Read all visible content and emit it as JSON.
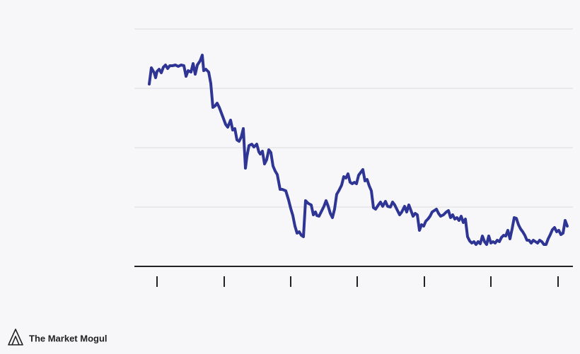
{
  "brand": "The Market Mogul",
  "chart_data": {
    "type": "line",
    "x": [
      -11,
      -8,
      -4,
      -2,
      0,
      3,
      6,
      9,
      12,
      15,
      18,
      22,
      26,
      30,
      34,
      38,
      41,
      44,
      48,
      51,
      54,
      57,
      61,
      64,
      66,
      69,
      73,
      76,
      79,
      82,
      85,
      88,
      91,
      94,
      97,
      100,
      104,
      107,
      110,
      113,
      116,
      119,
      122,
      125,
      127,
      130,
      134,
      137,
      141,
      144,
      146,
      149,
      152,
      155,
      158,
      161,
      164,
      167,
      170,
      174,
      177,
      182,
      186,
      189,
      192,
      195,
      198,
      201,
      204,
      207,
      210,
      214,
      218,
      221,
      224,
      226,
      229,
      233,
      236,
      239,
      242,
      245,
      248,
      251,
      254,
      257,
      261,
      264,
      267,
      270,
      273,
      276,
      279,
      282,
      285,
      288,
      291,
      294,
      297,
      300,
      303,
      306,
      309,
      313,
      316,
      319,
      323,
      326,
      330,
      333,
      336,
      340,
      343,
      346,
      350,
      353,
      356,
      359,
      362,
      365,
      368,
      371,
      374,
      377,
      380,
      383,
      386,
      389,
      392,
      395,
      398,
      401,
      405,
      409,
      412,
      415,
      418,
      421,
      424,
      427,
      430,
      433,
      436,
      439,
      442,
      445,
      448,
      451,
      454,
      457,
      460,
      463,
      466,
      469,
      472,
      475,
      478,
      481,
      484,
      487,
      490,
      493,
      496,
      499,
      502,
      505,
      508,
      511,
      514,
      517,
      520,
      523,
      526,
      529,
      532,
      535,
      538,
      541,
      544,
      547,
      550,
      553,
      556,
      559,
      562,
      565,
      568,
      571,
      574,
      577,
      580
    ],
    "series": [
      {
        "color": "#2e3594",
        "values": [
          258,
          281,
          274,
          267,
          276,
          279,
          274,
          282,
          285,
          280,
          284,
          284,
          285,
          283,
          285,
          284,
          269,
          277,
          275,
          287,
          272,
          285,
          291,
          299,
          277,
          279,
          275,
          259,
          225,
          227,
          231,
          225,
          217,
          209,
          201,
          197,
          207,
          193,
          195,
          179,
          177,
          183,
          195,
          139,
          155,
          171,
          173,
          169,
          173,
          162,
          159,
          163,
          145,
          151,
          165,
          161,
          142,
          135,
          130,
          109,
          109,
          107,
          94,
          82,
          72,
          57,
          47,
          49,
          44,
          42,
          93,
          89,
          87,
          73,
          77,
          72,
          71,
          79,
          85,
          93,
          85,
          75,
          69,
          81,
          102,
          107,
          115,
          127,
          125,
          131,
          119,
          117,
          119,
          117,
          129,
          133,
          137,
          121,
          123,
          114,
          107,
          83,
          81,
          87,
          91,
          85,
          92,
          85,
          84,
          91,
          87,
          79,
          73,
          77,
          85,
          77,
          87,
          79,
          71,
          75,
          73,
          51,
          59,
          57,
          64,
          67,
          71,
          77,
          79,
          81,
          75,
          71,
          73,
          77,
          79,
          69,
          73,
          67,
          69,
          65,
          71,
          62,
          67,
          42,
          36,
          33,
          35,
          31,
          35,
          32,
          43,
          35,
          31,
          43,
          33,
          35,
          33,
          37,
          35,
          41,
          44,
          43,
          51,
          39,
          53,
          69,
          68,
          59,
          53,
          49,
          44,
          37,
          37,
          33,
          37,
          35,
          33,
          37,
          35,
          31,
          31,
          39,
          45,
          52,
          55,
          49,
          51,
          45,
          47,
          65,
          57
        ]
      }
    ],
    "xlim": [
      -32,
      588
    ],
    "xticks": [
      0,
      95,
      189,
      283,
      378,
      472,
      567
    ],
    "ylim": [
      0,
      336
    ],
    "yticks": [
      84,
      168,
      252,
      336
    ],
    "grid": true
  }
}
